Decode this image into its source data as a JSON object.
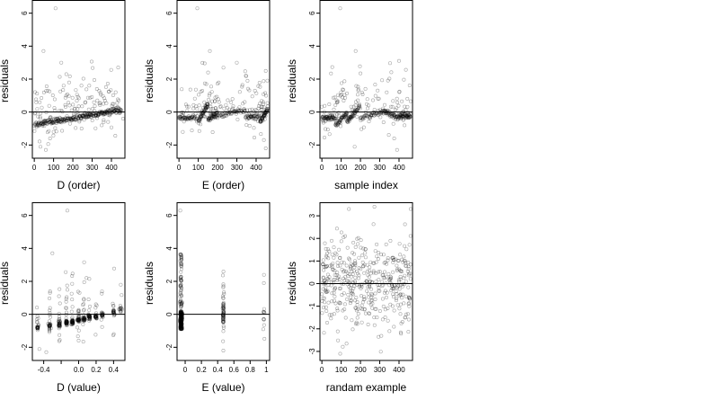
{
  "chart_data": [
    {
      "type": "scatter",
      "xlabel": "D (order)",
      "ylabel": "residuals",
      "xlim": [
        -10,
        470
      ],
      "ylim": [
        -2.8,
        6.8
      ],
      "xticks": [
        0,
        100,
        200,
        300,
        400
      ],
      "yticks": [
        -2,
        0,
        2,
        4,
        6
      ],
      "reference_line_y": 0,
      "pattern": "trend",
      "n_points": 450,
      "trend": {
        "x": [
          0,
          450
        ],
        "y": [
          -0.75,
          0.1
        ]
      },
      "outliers": [
        {
          "x": 32,
          "y": -2.1
        },
        {
          "x": 60,
          "y": -2.3
        },
        {
          "x": 82,
          "y": -1.6
        },
        {
          "x": 48,
          "y": 3.7
        },
        {
          "x": 140,
          "y": 3.0
        },
        {
          "x": 110,
          "y": 6.3
        },
        {
          "x": 285,
          "y": 1.6
        },
        {
          "x": 460,
          "y": -0.4
        },
        {
          "x": 360,
          "y": -0.6
        }
      ]
    },
    {
      "type": "scatter",
      "xlabel": "E (order)",
      "ylabel": "residuals",
      "xlim": [
        -10,
        470
      ],
      "ylim": [
        -2.8,
        6.8
      ],
      "xticks": [
        0,
        100,
        200,
        300,
        400
      ],
      "yticks": [
        -2,
        0,
        2,
        4,
        6
      ],
      "reference_line_y": 0,
      "pattern": "steps",
      "n_points": 450,
      "steps": [
        {
          "x": [
            0,
            95
          ],
          "y": [
            -0.35,
            -0.35
          ]
        },
        {
          "x": [
            100,
            150
          ],
          "y": [
            -0.6,
            0.5
          ]
        },
        {
          "x": [
            150,
            200
          ],
          "y": [
            -0.45,
            -0.1
          ]
        },
        {
          "x": [
            200,
            340
          ],
          "y": [
            -0.25,
            0.15
          ]
        },
        {
          "x": [
            340,
            420
          ],
          "y": [
            -0.3,
            -0.3
          ]
        },
        {
          "x": [
            420,
            460
          ],
          "y": [
            -0.6,
            0.2
          ]
        }
      ],
      "outliers": [
        {
          "x": 95,
          "y": 6.3
        },
        {
          "x": 160,
          "y": 3.7
        },
        {
          "x": 300,
          "y": 3.0
        },
        {
          "x": 450,
          "y": -2.2
        },
        {
          "x": 440,
          "y": -1.7
        },
        {
          "x": 20,
          "y": -1.2
        }
      ]
    },
    {
      "type": "scatter",
      "xlabel": "sample index",
      "ylabel": "residuals",
      "xlim": [
        -10,
        470
      ],
      "ylim": [
        -2.8,
        6.8
      ],
      "xticks": [
        0,
        100,
        200,
        300,
        400
      ],
      "yticks": [
        -2,
        0,
        2,
        4,
        6
      ],
      "reference_line_y": 0,
      "pattern": "steps",
      "n_points": 450,
      "steps": [
        {
          "x": [
            0,
            70
          ],
          "y": [
            -0.35,
            -0.35
          ]
        },
        {
          "x": [
            70,
            130
          ],
          "y": [
            -0.8,
            -0.1
          ]
        },
        {
          "x": [
            130,
            200
          ],
          "y": [
            -0.6,
            0.4
          ]
        },
        {
          "x": [
            200,
            320
          ],
          "y": [
            -0.4,
            0.0
          ]
        },
        {
          "x": [
            320,
            400
          ],
          "y": [
            0.1,
            -0.4
          ]
        },
        {
          "x": [
            400,
            460
          ],
          "y": [
            -0.2,
            -0.3
          ]
        }
      ],
      "outliers": [
        {
          "x": 95,
          "y": 6.3
        },
        {
          "x": 175,
          "y": 3.7
        },
        {
          "x": 400,
          "y": 3.1
        },
        {
          "x": 170,
          "y": -2.1
        },
        {
          "x": 375,
          "y": -1.6
        },
        {
          "x": 390,
          "y": -2.3
        }
      ]
    },
    {
      "type": "scatter",
      "xlabel": "D (value)",
      "ylabel": "residuals",
      "xlim": [
        -0.53,
        0.53
      ],
      "ylim": [
        -2.8,
        6.8
      ],
      "xticks": [
        -0.4,
        -0.2,
        0.0,
        0.2,
        0.4
      ],
      "xtick_labels": [
        "-0.4",
        "",
        "0.0",
        "0.2",
        "0.4"
      ],
      "yticks": [
        -2,
        0,
        2,
        4,
        6
      ],
      "reference_line_y": 0,
      "pattern": "clusters",
      "n_points": 450,
      "clusters": [
        {
          "x": -0.47,
          "y": -0.8,
          "n": 25
        },
        {
          "x": -0.33,
          "y": -0.7,
          "n": 35
        },
        {
          "x": -0.22,
          "y": -0.6,
          "n": 40
        },
        {
          "x": -0.14,
          "y": -0.5,
          "n": 45
        },
        {
          "x": -0.07,
          "y": -0.45,
          "n": 45
        },
        {
          "x": 0.0,
          "y": -0.35,
          "n": 45
        },
        {
          "x": 0.06,
          "y": -0.3,
          "n": 40
        },
        {
          "x": 0.12,
          "y": -0.2,
          "n": 35
        },
        {
          "x": 0.2,
          "y": -0.15,
          "n": 30
        },
        {
          "x": 0.27,
          "y": -0.05,
          "n": 25
        },
        {
          "x": 0.4,
          "y": 0.1,
          "n": 25
        },
        {
          "x": 0.48,
          "y": 0.3,
          "n": 15
        }
      ],
      "outliers": [
        {
          "x": -0.13,
          "y": 6.3
        },
        {
          "x": -0.3,
          "y": 3.7
        },
        {
          "x": -0.45,
          "y": -2.1
        },
        {
          "x": -0.37,
          "y": -2.3
        },
        {
          "x": 0.09,
          "y": 2.2
        }
      ]
    },
    {
      "type": "scatter",
      "xlabel": "E (value)",
      "ylabel": "residuals",
      "xlim": [
        -0.1,
        1.04
      ],
      "ylim": [
        -2.8,
        6.8
      ],
      "xticks": [
        0.0,
        0.2,
        0.4,
        0.6,
        0.8,
        1.0
      ],
      "yticks": [
        -2,
        0,
        2,
        4,
        6
      ],
      "reference_line_y": 0,
      "pattern": "strips",
      "n_points": 450,
      "strips": [
        {
          "x": -0.05,
          "y_range": [
            -1.0,
            3.7
          ],
          "dense_range": [
            -0.9,
            0.2
          ],
          "n": 330
        },
        {
          "x": 0.47,
          "y_range": [
            -2.2,
            2.6
          ],
          "dense_range": [
            -0.5,
            0.7
          ],
          "n": 60
        },
        {
          "x": 0.97,
          "y_range": [
            -1.8,
            2.5
          ],
          "dense_range": [
            -0.5,
            0.5
          ],
          "n": 12
        }
      ],
      "outliers": [
        {
          "x": -0.06,
          "y": 6.3
        },
        {
          "x": 0.47,
          "y": -2.2
        },
        {
          "x": 0.97,
          "y": 2.4
        }
      ]
    },
    {
      "type": "scatter",
      "xlabel": "randam example",
      "ylabel": "residuals",
      "xlim": [
        -10,
        470
      ],
      "ylim": [
        -3.4,
        3.6
      ],
      "xticks": [
        0,
        100,
        200,
        300,
        400
      ],
      "yticks": [
        -3,
        -2,
        -1,
        0,
        1,
        2,
        3
      ],
      "reference_line_y": 0,
      "pattern": "random",
      "n_points": 450,
      "random": {
        "mean": 0,
        "sd": 1.0,
        "x_range": [
          0,
          460
        ]
      },
      "outliers": [
        {
          "x": 95,
          "y": -3.1
        },
        {
          "x": 460,
          "y": 3.3
        },
        {
          "x": 140,
          "y": 3.3
        }
      ]
    }
  ]
}
